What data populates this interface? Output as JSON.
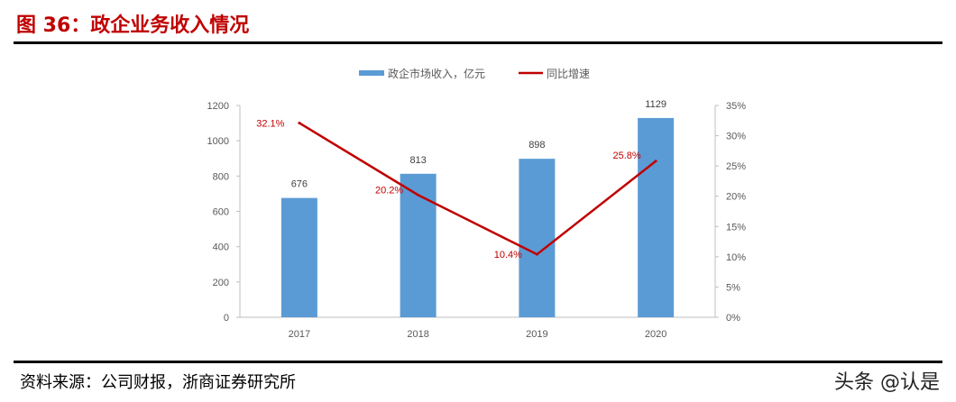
{
  "title": "图 36：政企业务收入情况",
  "source": "资料来源：公司财报，浙商证券研究所",
  "watermark": "头条 @认是",
  "chart_data": {
    "type": "bar+line",
    "categories": [
      "2017",
      "2018",
      "2019",
      "2020"
    ],
    "series": [
      {
        "name": "政企市场收入，亿元",
        "type": "bar",
        "axis": "left",
        "color": "#5b9bd5",
        "values": [
          676,
          813,
          898,
          1129
        ],
        "labels": [
          "676",
          "813",
          "898",
          "1129"
        ]
      },
      {
        "name": "同比增速",
        "type": "line",
        "axis": "right",
        "color": "#c00000",
        "values": [
          32.1,
          20.2,
          10.4,
          25.8
        ],
        "labels": [
          "32.1%",
          "20.2%",
          "10.4%",
          "25.8%"
        ]
      }
    ],
    "left_axis": {
      "ylim": [
        0,
        1200
      ],
      "ticks": [
        "0",
        "200",
        "400",
        "600",
        "800",
        "1000",
        "1200"
      ]
    },
    "right_axis": {
      "ylim": [
        0,
        35
      ],
      "ticks": [
        "0%",
        "5%",
        "10%",
        "15%",
        "20%",
        "25%",
        "30%",
        "35%"
      ]
    },
    "grid": false,
    "legend": "top"
  }
}
